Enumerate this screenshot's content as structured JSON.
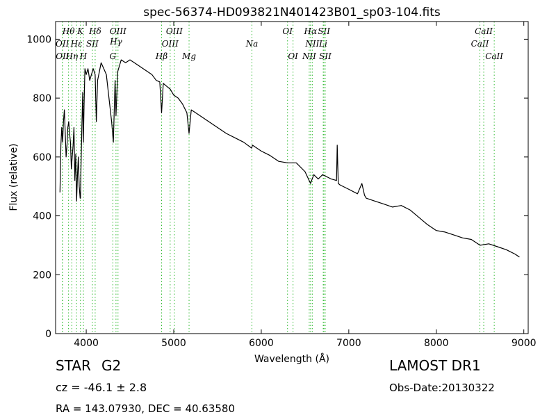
{
  "chart_data": {
    "type": "line",
    "title": "spec-56374-HD093821N401423B01_sp03-104.fits",
    "xlabel": "Wavelength (Å)",
    "ylabel": "Flux (relative)",
    "xlim": [
      3650,
      9050
    ],
    "ylim": [
      0,
      1060
    ],
    "xticks": [
      4000,
      5000,
      6000,
      7000,
      8000,
      9000
    ],
    "yticks": [
      0,
      200,
      400,
      600,
      800,
      1000
    ],
    "grid": false,
    "line_color": "#000000",
    "marker_color": "#33bb33",
    "series": [
      {
        "x": [
          3700,
          3710,
          3720,
          3730,
          3740,
          3750,
          3760,
          3770,
          3780,
          3790,
          3800,
          3810,
          3820,
          3830,
          3840,
          3850,
          3860,
          3870,
          3880,
          3890,
          3900,
          3910,
          3920,
          3930,
          3934,
          3940,
          3950,
          3960,
          3968,
          3975,
          3985,
          4000,
          4020,
          4040,
          4060,
          4080,
          4102,
          4115,
          4130,
          4150,
          4170,
          4200,
          4230,
          4260,
          4290,
          4310,
          4330,
          4340,
          4360,
          4380,
          4400,
          4450,
          4500,
          4550,
          4600,
          4650,
          4700,
          4750,
          4800,
          4840,
          4861,
          4880,
          4920,
          4960,
          5000,
          5050,
          5100,
          5150,
          5175,
          5200,
          5250,
          5300,
          5400,
          5500,
          5600,
          5700,
          5800,
          5890,
          5900,
          6000,
          6100,
          6200,
          6300,
          6400,
          6500,
          6563,
          6600,
          6650,
          6700,
          6800,
          6860,
          6868,
          6880,
          6900,
          7000,
          7100,
          7150,
          7180,
          7200,
          7300,
          7400,
          7500,
          7600,
          7700,
          7800,
          7900,
          8000,
          8100,
          8200,
          8300,
          8400,
          8500,
          8600,
          8700,
          8800,
          8900,
          8950
        ],
        "y": [
          480,
          640,
          700,
          650,
          720,
          760,
          680,
          600,
          640,
          700,
          720,
          680,
          650,
          560,
          600,
          640,
          700,
          520,
          610,
          450,
          540,
          600,
          500,
          460,
          460,
          560,
          700,
          820,
          650,
          770,
          900,
          880,
          900,
          860,
          880,
          900,
          880,
          720,
          860,
          890,
          920,
          900,
          880,
          800,
          720,
          650,
          860,
          740,
          890,
          910,
          930,
          920,
          930,
          920,
          910,
          900,
          890,
          880,
          860,
          855,
          750,
          850,
          840,
          830,
          810,
          800,
          780,
          750,
          680,
          760,
          750,
          740,
          720,
          700,
          680,
          665,
          650,
          630,
          640,
          620,
          605,
          585,
          580,
          580,
          550,
          510,
          540,
          525,
          540,
          525,
          520,
          640,
          510,
          505,
          490,
          475,
          510,
          470,
          460,
          450,
          440,
          430,
          435,
          420,
          395,
          370,
          350,
          345,
          335,
          325,
          320,
          300,
          305,
          295,
          285,
          270,
          260
        ]
      }
    ],
    "lines": [
      {
        "label": "OII",
        "x": 3727,
        "tier": "mid2"
      },
      {
        "label": "OII",
        "x": 3729,
        "tier": "bot2"
      },
      {
        "label": "Hθ",
        "x": 3798,
        "tier": "top"
      },
      {
        "label": "Hη",
        "x": 3835,
        "tier": "bot2"
      },
      {
        "label": "Hε",
        "x": 3889,
        "tier": "mid2"
      },
      {
        "label": "K",
        "x": 3934,
        "tier": "top"
      },
      {
        "label": "H",
        "x": 3968,
        "tier": "bot2"
      },
      {
        "label": "SII",
        "x": 4070,
        "tier": "mid2"
      },
      {
        "label": "Hδ",
        "x": 4102,
        "tier": "top"
      },
      {
        "label": "G",
        "x": 4304,
        "tier": "bot"
      },
      {
        "label": "Hγ",
        "x": 4340,
        "tier": "mid"
      },
      {
        "label": "OIII",
        "x": 4363,
        "tier": "top"
      },
      {
        "label": "Hβ",
        "x": 4861,
        "tier": "bot"
      },
      {
        "label": "OIII",
        "x": 4959,
        "tier": "mid2"
      },
      {
        "label": "OIII",
        "x": 5007,
        "tier": "top"
      },
      {
        "label": "Mg",
        "x": 5175,
        "tier": "bot"
      },
      {
        "label": "Na",
        "x": 5893,
        "tier": "mid2"
      },
      {
        "label": "OI",
        "x": 6300,
        "tier": "top"
      },
      {
        "label": "OI",
        "x": 6363,
        "tier": "bot"
      },
      {
        "label": "NII",
        "x": 6548,
        "tier": "bot"
      },
      {
        "label": "Hα",
        "x": 6563,
        "tier": "top"
      },
      {
        "label": "NII",
        "x": 6583,
        "tier": "mid2"
      },
      {
        "label": "Li",
        "x": 6708,
        "tier": "mid2"
      },
      {
        "label": "SII",
        "x": 6716,
        "tier": "top"
      },
      {
        "label": "SII",
        "x": 6731,
        "tier": "bot"
      },
      {
        "label": "CaII",
        "x": 8498,
        "tier": "mid2"
      },
      {
        "label": "CaII",
        "x": 8542,
        "tier": "top"
      },
      {
        "label": "CaII",
        "x": 8662,
        "tier": "bot"
      }
    ]
  },
  "info": {
    "object_class": "STAR",
    "subclass": "G2",
    "cz": "cz = -46.1 ± 2.8",
    "radec": "RA = 143.07930, DEC = 40.63580",
    "survey": "LAMOST DR1",
    "obs_date": "Obs-Date:20130322"
  }
}
